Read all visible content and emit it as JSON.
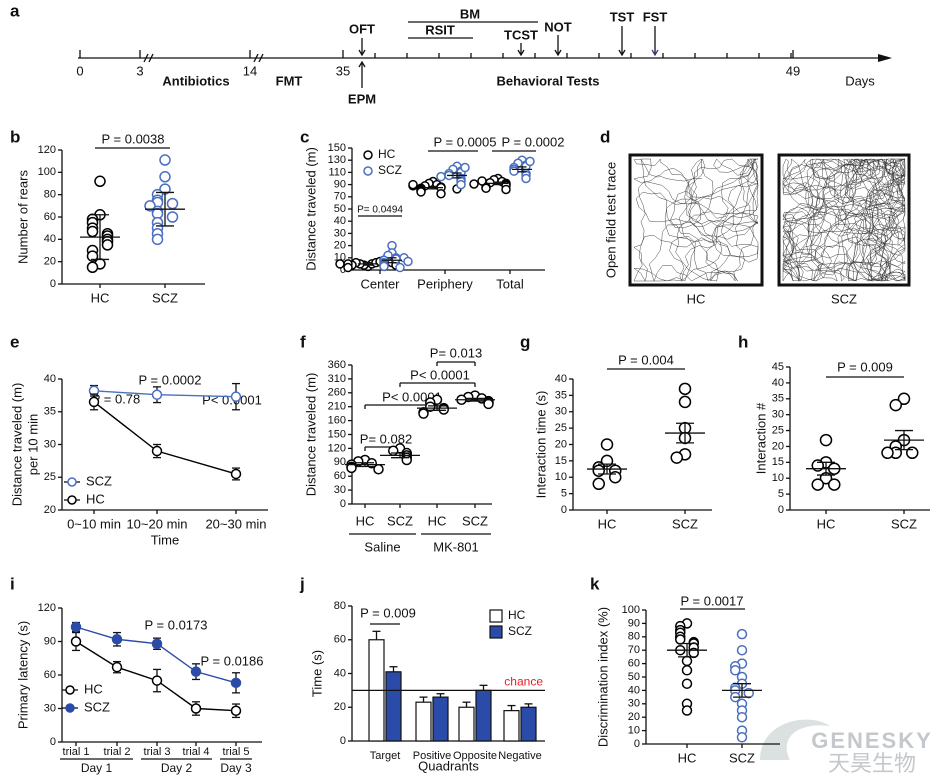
{
  "timeline": {
    "panel": "a",
    "days": [
      0,
      3,
      14,
      35,
      49
    ],
    "phases": [
      "Antibiotics",
      "FMT",
      "Behavioral Tests"
    ],
    "unit": "Days",
    "events": [
      "OFT",
      "EPM",
      "RSIT",
      "BM",
      "TCST",
      "NOT",
      "TST",
      "FST"
    ]
  },
  "traces": {
    "panel": "d",
    "ylabel": "Open field test trace",
    "labels": [
      "HC",
      "SCZ"
    ]
  },
  "watermark": {
    "brand": "GENESKY",
    "name": "天昊生物"
  },
  "chart_data": [
    {
      "type": "strip",
      "panel": "b",
      "ylabel": "Number of rears",
      "ylim": [
        0,
        120
      ],
      "yticks": [
        0,
        20,
        40,
        60,
        80,
        100,
        120
      ],
      "annotations": [
        "P = 0.0038"
      ],
      "groups": [
        {
          "name": "HC",
          "color": "#000000",
          "values": [
            92,
            62,
            58,
            55,
            50,
            47,
            45,
            43,
            40,
            38,
            35,
            30,
            25,
            18,
            15
          ],
          "mean": 42,
          "error": 20
        },
        {
          "name": "SCZ",
          "color": "#4a6fc0",
          "values": [
            111,
            96,
            85,
            80,
            75,
            73,
            72,
            70,
            65,
            63,
            60,
            55,
            50,
            45,
            40
          ],
          "mean": 67,
          "error": 15
        }
      ]
    },
    {
      "type": "grouped_strip",
      "panel": "c",
      "ylabel": "Distance traveled (m)",
      "ylim": [
        0,
        150
      ],
      "yticks": [
        0,
        10,
        20,
        30,
        40,
        50,
        70,
        90,
        110,
        130,
        150
      ],
      "axis_break": true,
      "categories": [
        "Center",
        "Periphery",
        "Total"
      ],
      "annotations": [
        "P= 0.0494",
        "P = 0.0005",
        "P = 0.0002"
      ],
      "series": [
        {
          "name": "HC",
          "color": "#000000",
          "values": [
            [
              3,
              4,
              5,
              5,
              6,
              6,
              7,
              4,
              3,
              5,
              8,
              2,
              6,
              5,
              4
            ],
            [
              95,
              92,
              90,
              88,
              86,
              85,
              84,
              82,
              80,
              78,
              75,
              88,
              90,
              83
            ],
            [
              100,
              98,
              95,
              93,
              92,
              90,
              88,
              86,
              84,
              82,
              96,
              91
            ]
          ],
          "means": [
            5,
            85,
            92
          ],
          "errors": [
            1,
            2,
            2
          ]
        },
        {
          "name": "SCZ",
          "color": "#4a6fc0",
          "values": [
            [
              20,
              14,
              12,
              10,
              9,
              8,
              6,
              5,
              4,
              3,
              2,
              10,
              7
            ],
            [
              120,
              115,
              112,
              110,
              108,
              105,
              100,
              98,
              95,
              90,
              118,
              103
            ],
            [
              130,
              125,
              122,
              120,
              118,
              115,
              112,
              108,
              105,
              100,
              128
            ]
          ],
          "means": [
            8,
            105,
            115
          ],
          "errors": [
            2,
            4,
            4
          ]
        }
      ]
    },
    {
      "type": "line",
      "panel": "e",
      "ylabel": [
        "Distance traveled (m)",
        "per 10 min"
      ],
      "xlabel": "Time",
      "ylim": [
        20,
        40
      ],
      "yticks": [
        20,
        25,
        30,
        35,
        40
      ],
      "categories": [
        "0~10 min",
        "10~20 min",
        "20~30 min"
      ],
      "annotations": [
        "P = 0.78",
        "P = 0.0002",
        "P< 0.0001"
      ],
      "series": [
        {
          "name": "SCZ",
          "color": "#4a6fc0",
          "marker": "open",
          "values": [
            38.2,
            37.6,
            37.3
          ],
          "errors": [
            0.8,
            1.2,
            2
          ]
        },
        {
          "name": "HC",
          "color": "#000000",
          "marker": "open",
          "values": [
            36.5,
            29,
            25.5
          ],
          "errors": [
            1.2,
            1,
            0.9
          ]
        }
      ]
    },
    {
      "type": "strip",
      "panel": "f",
      "ylabel": "Distance traveled (m)",
      "ylim": [
        0,
        360
      ],
      "yticks": [
        0,
        30,
        60,
        90,
        120,
        150,
        160,
        210,
        260,
        310,
        360
      ],
      "axis_break": true,
      "conditions": [
        "Saline",
        "MK-801"
      ],
      "annotations": [
        "P= 0.082",
        "P< 0.0001",
        "P< 0.0001",
        "P= 0.013"
      ],
      "groups": [
        {
          "name": "HC",
          "color": "#000000",
          "values": [
            95,
            92,
            88,
            85,
            80,
            78,
            75
          ],
          "mean": 85,
          "error": 4
        },
        {
          "name": "SCZ",
          "color": "#000000",
          "values": [
            120,
            115,
            110,
            105,
            100,
            95
          ],
          "mean": 105,
          "error": 5
        },
        {
          "name": "HC",
          "color": "#000000",
          "values": [
            235,
            225,
            210,
            205,
            200,
            190,
            185
          ],
          "mean": 205,
          "error": 8
        },
        {
          "name": "SCZ",
          "color": "#000000",
          "values": [
            250,
            245,
            240,
            235,
            230,
            225,
            220
          ],
          "mean": 235,
          "error": 5
        }
      ]
    },
    {
      "type": "strip",
      "panel": "g",
      "ylabel": "Interaction time (s)",
      "ylim": [
        0,
        40
      ],
      "yticks": [
        0,
        5,
        10,
        15,
        20,
        25,
        30,
        35,
        40
      ],
      "annotations": [
        "P = 0.004"
      ],
      "groups": [
        {
          "name": "HC",
          "color": "#000000",
          "values": [
            20,
            15,
            13,
            12,
            12,
            10,
            8
          ],
          "mean": 12.5,
          "error": 1.5
        },
        {
          "name": "SCZ",
          "color": "#000000",
          "values": [
            37,
            33,
            25,
            22,
            17,
            16
          ],
          "mean": 23.5,
          "error": 3
        }
      ]
    },
    {
      "type": "strip",
      "panel": "h",
      "ylabel": "Interaction #",
      "ylim": [
        0,
        45
      ],
      "yticks": [
        0,
        5,
        10,
        15,
        20,
        25,
        30,
        35,
        40,
        45
      ],
      "annotations": [
        "P = 0.009"
      ],
      "groups": [
        {
          "name": "HC",
          "color": "#000000",
          "values": [
            22,
            15,
            14,
            13,
            10,
            8,
            8
          ],
          "mean": 13,
          "error": 2
        },
        {
          "name": "SCZ",
          "color": "#000000",
          "values": [
            35,
            33,
            22,
            20,
            18,
            18,
            18
          ],
          "mean": 22,
          "error": 3
        }
      ]
    },
    {
      "type": "line",
      "panel": "i",
      "ylabel": "Primary latency (s)",
      "ylim": [
        0,
        120
      ],
      "yticks": [
        0,
        30,
        60,
        90,
        120
      ],
      "categories": [
        "trial 1",
        "trial 2",
        "trial 3",
        "trial 4",
        "trial 5"
      ],
      "conditions": [
        "Day 1",
        "Day 2",
        "Day 3"
      ],
      "annotations": [
        "P = 0.0173",
        "P = 0.0186"
      ],
      "series": [
        {
          "name": "HC",
          "color": "#000000",
          "marker": "open",
          "values": [
            90,
            67,
            55,
            30,
            28
          ],
          "errors": [
            8,
            5,
            10,
            6,
            6
          ]
        },
        {
          "name": "SCZ",
          "color": "#2b4ba8",
          "marker": "filled",
          "values": [
            103,
            92,
            88,
            63,
            53
          ],
          "errors": [
            4,
            6,
            5,
            7,
            9
          ]
        }
      ]
    },
    {
      "type": "bar",
      "panel": "j",
      "ylabel": "Time (s)",
      "xlabel": "Quadrants",
      "ylim": [
        0,
        80
      ],
      "yticks": [
        0,
        20,
        40,
        60,
        80
      ],
      "categories": [
        "Target",
        "Positive",
        "Opposite",
        "Negative"
      ],
      "annotations": [
        "P = 0.009"
      ],
      "hline": {
        "value": 30,
        "label": "chance",
        "color": "#e8202a"
      },
      "series": [
        {
          "name": "HC",
          "color": "#ffffff",
          "values": [
            60,
            23,
            20,
            18
          ],
          "errors": [
            5,
            3,
            3,
            3
          ]
        },
        {
          "name": "SCZ",
          "color": "#2b4ba8",
          "values": [
            41,
            26,
            30,
            20
          ],
          "errors": [
            3,
            2,
            3,
            2
          ]
        }
      ]
    },
    {
      "type": "strip",
      "panel": "k",
      "ylabel": "Discrimination index (%)",
      "ylim": [
        0,
        100
      ],
      "yticks": [
        0,
        10,
        20,
        30,
        40,
        50,
        60,
        70,
        80,
        90,
        100
      ],
      "annotations": [
        "P = 0.0017"
      ],
      "groups": [
        {
          "name": "HC",
          "color": "#000000",
          "values": [
            90,
            88,
            85,
            83,
            80,
            78,
            76,
            75,
            72,
            70,
            68,
            62,
            55,
            45,
            30,
            25
          ],
          "mean": 70,
          "error": 5
        },
        {
          "name": "SCZ",
          "color": "#4a6fc0",
          "values": [
            82,
            70,
            60,
            58,
            55,
            50,
            45,
            42,
            40,
            38,
            35,
            30,
            25,
            20,
            10,
            5
          ],
          "mean": 40,
          "error": 5
        }
      ]
    }
  ]
}
